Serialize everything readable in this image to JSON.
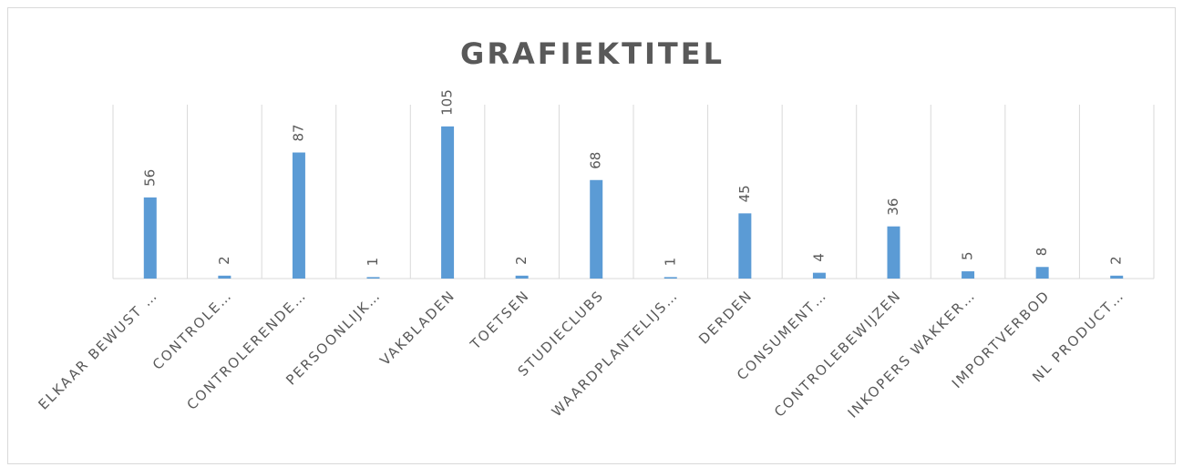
{
  "chart_data": {
    "type": "bar",
    "title": "GRAFIEKTITEL",
    "categories": [
      "ELKAAR BEWUST …",
      "CONTROLE…",
      "CONTROLERENDE…",
      "PERSOONLIJK…",
      "VAKBLADEN",
      "TOETSEN",
      "STUDIECLUBS",
      "WAARDPLANTELIJS…",
      "DERDEN",
      "CONSUMENT…",
      "CONTROLEBEWIJZEN",
      "INKOPERS WAKKER…",
      "IMPORTVERBOD",
      "NL PRODUCT…"
    ],
    "values": [
      56,
      2,
      87,
      1,
      105,
      2,
      68,
      1,
      45,
      4,
      36,
      5,
      8,
      2
    ],
    "color": "#5b9bd5",
    "ylim": [
      0,
      120
    ],
    "grid": true
  }
}
